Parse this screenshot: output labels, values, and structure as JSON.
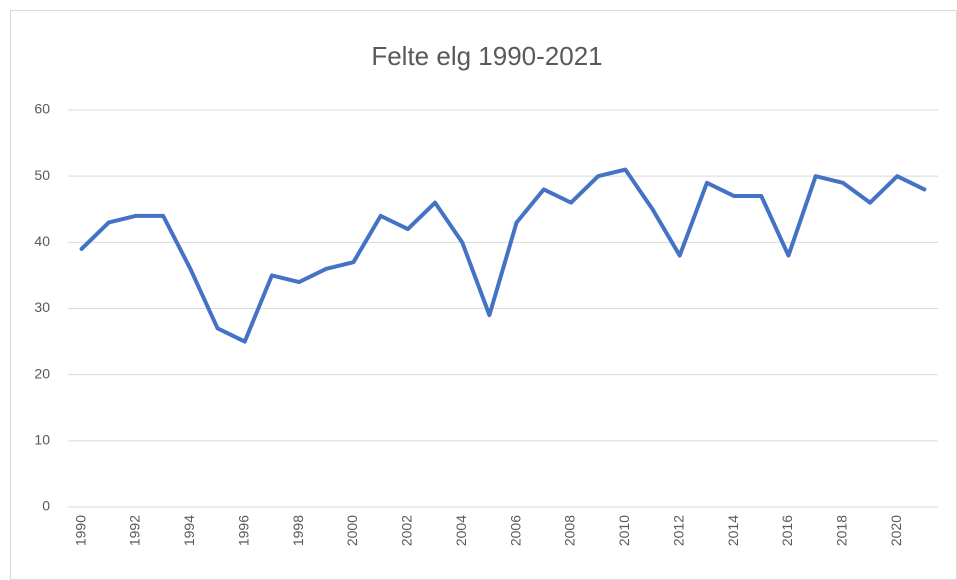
{
  "chart_data": {
    "type": "line",
    "title": "Felte elg 1990-2021",
    "categories": [
      "1990",
      null,
      "1992",
      null,
      "1994",
      null,
      "1996",
      null,
      "1998",
      null,
      "2000",
      null,
      "2002",
      null,
      "2004",
      null,
      "2006",
      null,
      "2008",
      null,
      "2010",
      null,
      "2012",
      null,
      "2014",
      null,
      "2016",
      null,
      "2018",
      null,
      "2020",
      null
    ],
    "values": [
      39,
      43,
      44,
      44,
      36,
      27,
      25,
      35,
      34,
      36,
      37,
      44,
      42,
      46,
      40,
      29,
      43,
      48,
      46,
      50,
      51,
      45,
      38,
      49,
      47,
      47,
      38,
      50,
      49,
      46,
      50,
      48
    ],
    "color": "#4472c4",
    "ylim": [
      0,
      60
    ],
    "yticks": [
      0,
      10,
      20,
      30,
      40,
      50,
      60
    ],
    "grid": true
  }
}
